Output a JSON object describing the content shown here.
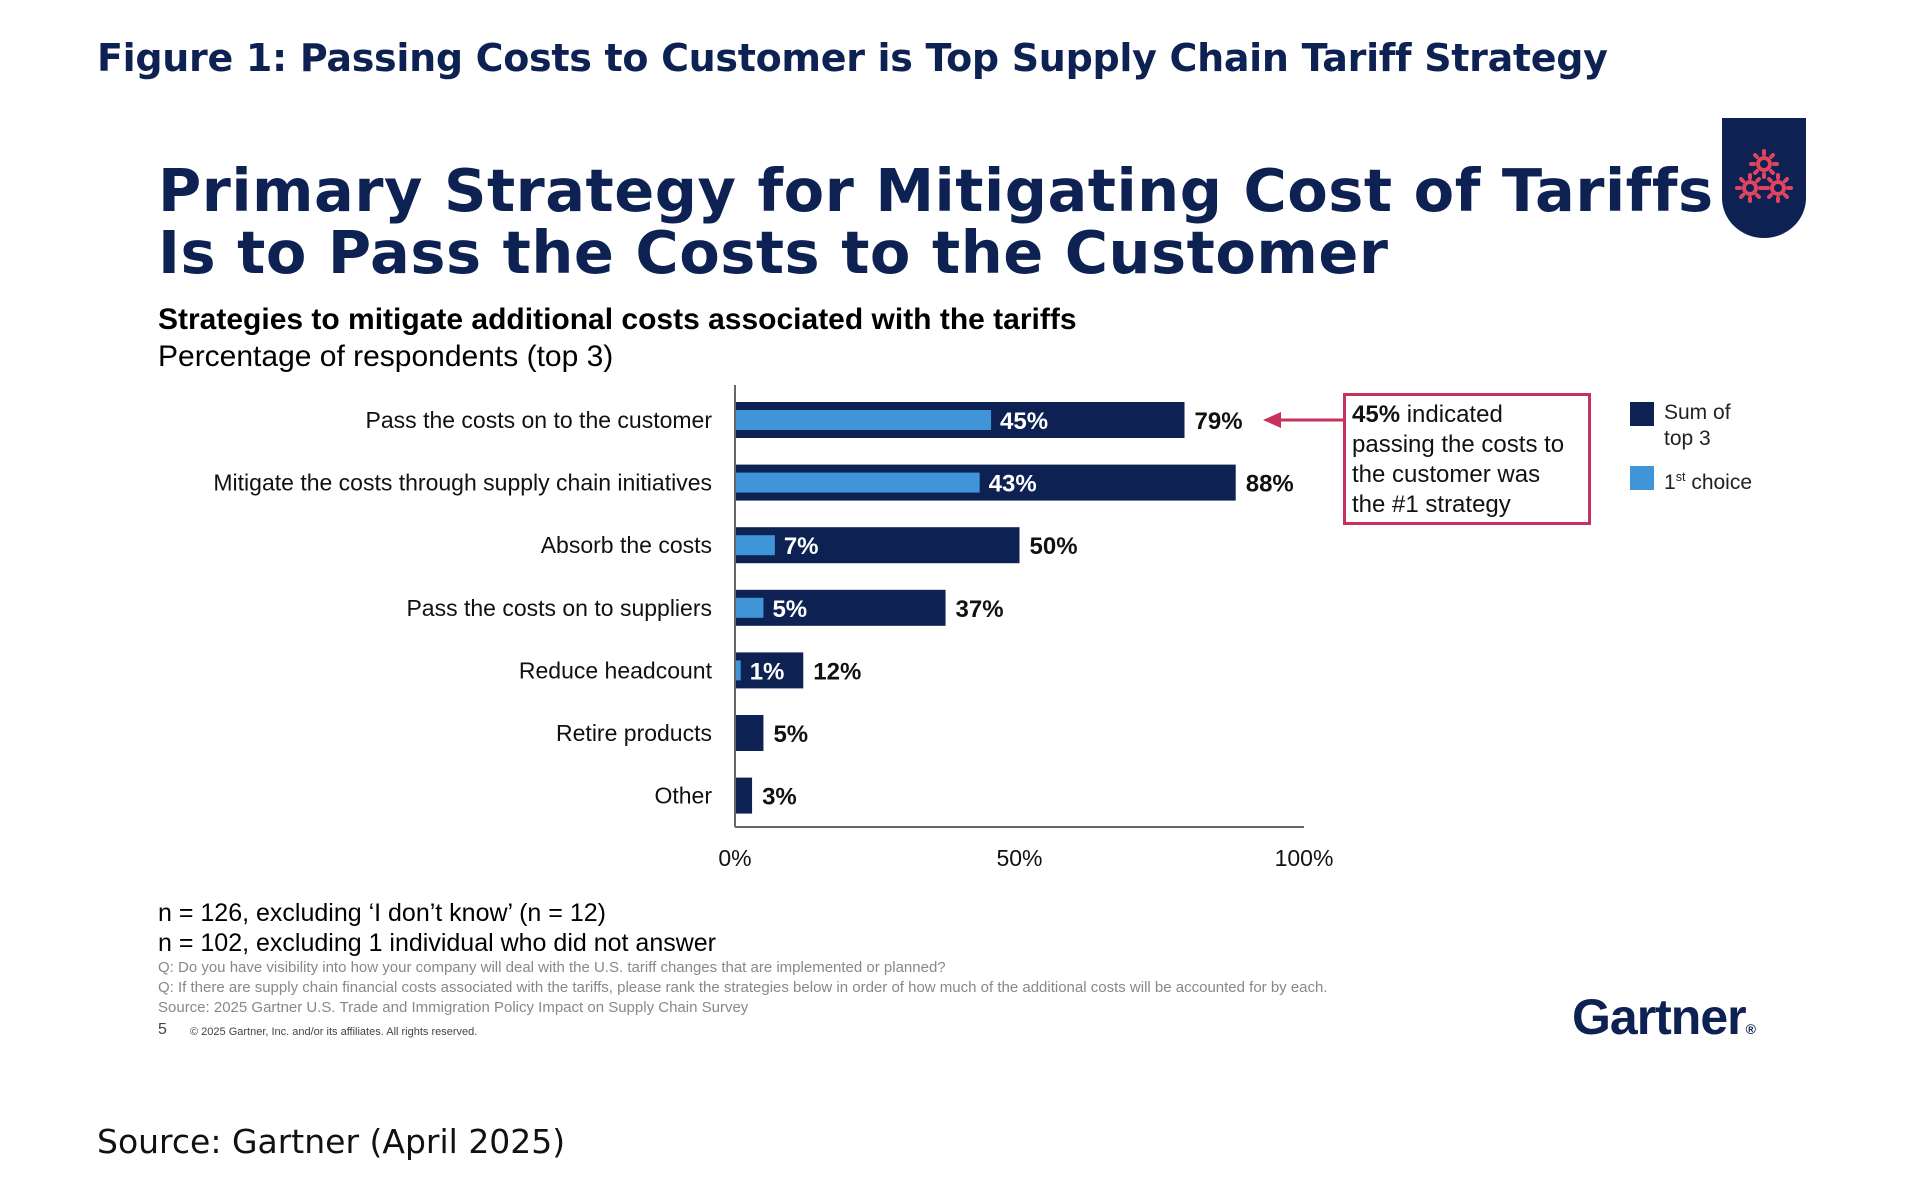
{
  "figure_title": "Figure 1: Passing Costs to Customer is Top Supply Chain Tariff Strategy",
  "slide": {
    "title_line1": "Primary Strategy for Mitigating Cost of Tariffs",
    "title_line2": "Is to Pass the Costs to the Customer",
    "subtitle": "Strategies to mitigate additional costs associated with the tariffs",
    "subtitle2": "Percentage of respondents (top 3)",
    "badge_icon": "gears-icon"
  },
  "chart_data": {
    "type": "bar",
    "orientation": "horizontal",
    "categories": [
      "Pass the costs on to the customer",
      "Mitigate the costs through supply chain initiatives",
      "Absorb the costs",
      "Pass the costs on to suppliers",
      "Reduce headcount",
      "Retire products",
      "Other"
    ],
    "series": [
      {
        "name": "Sum of top 3",
        "values": [
          79,
          88,
          50,
          37,
          12,
          5,
          3
        ],
        "labels": [
          "79%",
          "88%",
          "50%",
          "37%",
          "12%",
          "5%",
          "3%"
        ],
        "color": "#0d2253"
      },
      {
        "name": "1st choice",
        "values": [
          45,
          43,
          7,
          5,
          1,
          null,
          null
        ],
        "labels": [
          "45%",
          "43%",
          "7%",
          "5%",
          "1%",
          "",
          ""
        ],
        "color": "#3f95d7"
      }
    ],
    "xlim": [
      0,
      100
    ],
    "xticks": [
      "0%",
      "50%",
      "100%"
    ],
    "legend_position": "right",
    "annotation": {
      "bold": "45%",
      "text_line1": " indicated",
      "text_line2": "passing the costs to",
      "text_line3": "the customer was",
      "text_line4": "the #1 strategy",
      "arrow_target": "Pass the costs on to the customer",
      "border_color": "#c8315c"
    }
  },
  "legend": {
    "sum_line1": "Sum of",
    "sum_line2": "top 3",
    "first_num": "1",
    "first_sup": "st",
    "first_text": " choice"
  },
  "notes": {
    "n1": "n = 126, excluding ‘I don’t know’ (n = 12)",
    "n2": "n = 102, excluding 1 individual who did not answer",
    "q1": "Q: Do you have visibility into how your company will deal with the U.S. tariff changes that are implemented or planned?",
    "q2": "Q: If there are supply chain financial costs associated with the tariffs, please rank the strategies below in order of how much of the additional costs will be accounted for by each.",
    "source": "Source: 2025 Gartner U.S. Trade and Immigration Policy Impact on Supply Chain Survey"
  },
  "page_number": "5",
  "copyright": "© 2025 Gartner, Inc. and/or its affiliates. All rights reserved.",
  "brand": "Gartner",
  "brand_mark": "®",
  "source_caption": "Source: Gartner (April 2025)"
}
